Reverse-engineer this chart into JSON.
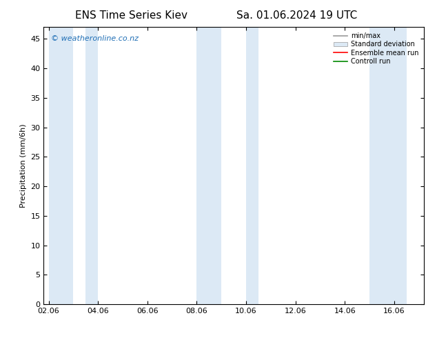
{
  "title_left": "ENS Time Series Kiev",
  "title_right": "Sa. 01.06.2024 19 UTC",
  "ylabel": "Precipitation (mm/6h)",
  "xlabel": "",
  "ylim": [
    0,
    47
  ],
  "yticks": [
    0,
    5,
    10,
    15,
    20,
    25,
    30,
    35,
    40,
    45
  ],
  "bg_color": "#ffffff",
  "shaded_color": "#dce9f5",
  "shaded_bands": [
    [
      0.0,
      1.0
    ],
    [
      1.5,
      2.0
    ],
    [
      6.0,
      7.0
    ],
    [
      8.0,
      8.5
    ],
    [
      13.0,
      14.5
    ]
  ],
  "xtick_positions": [
    0,
    2,
    4,
    6,
    8,
    10,
    12,
    14
  ],
  "xtick_labels": [
    "02.06",
    "04.06",
    "06.06",
    "08.06",
    "10.06",
    "12.06",
    "14.06",
    "16.06"
  ],
  "xlim": [
    -0.2,
    15.2
  ],
  "watermark": "© weatheronline.co.nz",
  "watermark_color": "#1e6eb5",
  "legend_items": [
    {
      "label": "min/max",
      "color": "#aaaaaa",
      "type": "errorbar"
    },
    {
      "label": "Standard deviation",
      "color": "#c8d8e8",
      "type": "bar"
    },
    {
      "label": "Ensemble mean run",
      "color": "#ff0000",
      "type": "line"
    },
    {
      "label": "Controll run",
      "color": "#008800",
      "type": "line"
    }
  ],
  "title_fontsize": 11,
  "tick_fontsize": 8,
  "ylabel_fontsize": 8,
  "watermark_fontsize": 8,
  "legend_fontsize": 7
}
